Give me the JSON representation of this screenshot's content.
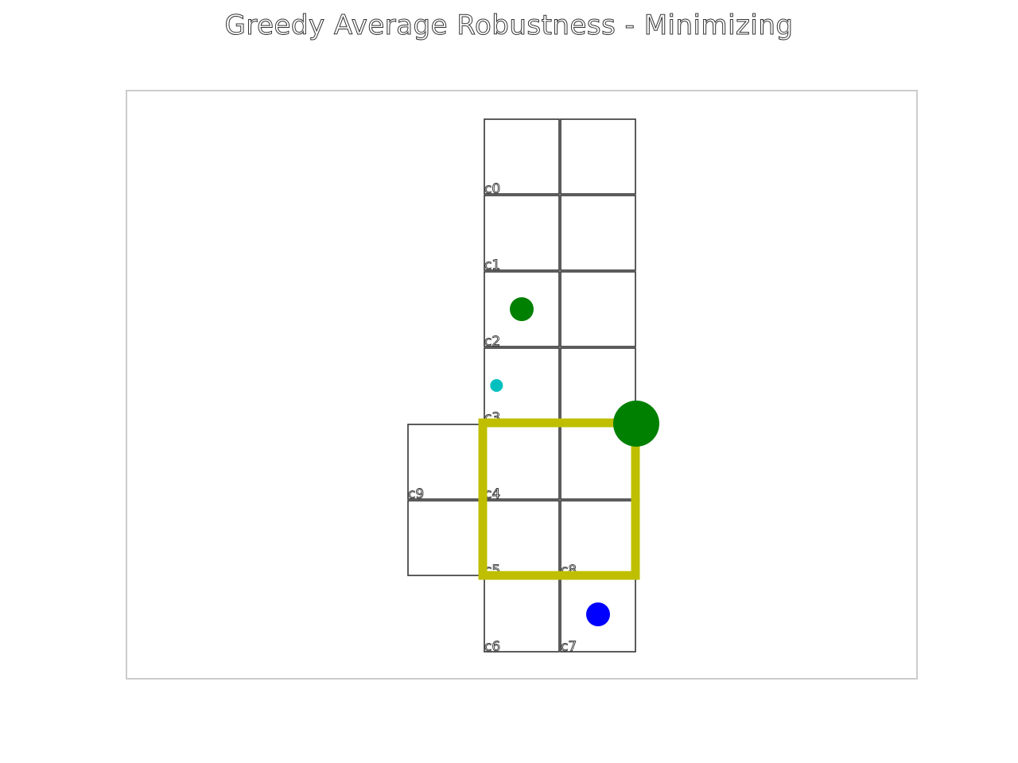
{
  "title": "Greedy Average Robustness - Minimizing",
  "cells": [
    {
      "label": "c0",
      "col": 0,
      "row": 0
    },
    {
      "label": "",
      "col": 1,
      "row": 0
    },
    {
      "label": "c1",
      "col": 0,
      "row": 1
    },
    {
      "label": "",
      "col": 1,
      "row": 1
    },
    {
      "label": "c2",
      "col": 0,
      "row": 2
    },
    {
      "label": "",
      "col": 1,
      "row": 2
    },
    {
      "label": "c3",
      "col": 0,
      "row": 3
    },
    {
      "label": "",
      "col": 1,
      "row": 3
    },
    {
      "label": "c9",
      "col": -1,
      "row": 4
    },
    {
      "label": "c4",
      "col": 0,
      "row": 4
    },
    {
      "label": "",
      "col": 1,
      "row": 4
    },
    {
      "label": "",
      "col": -1,
      "row": 5
    },
    {
      "label": "c5",
      "col": 0,
      "row": 5
    },
    {
      "label": "c8",
      "col": 1,
      "row": 5
    },
    {
      "label": "c6",
      "col": 0,
      "row": 6
    },
    {
      "label": "c7",
      "col": 1,
      "row": 6
    }
  ],
  "markers": [
    {
      "name": "green-marker-small",
      "gx": 0.5,
      "gy": 2.5,
      "size": "medium",
      "color": "#008000"
    },
    {
      "name": "cyan-marker",
      "gx": 0.17,
      "gy": 3.5,
      "size": "small",
      "color": "#00bfbf"
    },
    {
      "name": "green-marker-large",
      "gx": 2.0,
      "gy": 4.0,
      "size": "large",
      "color": "#008000"
    },
    {
      "name": "blue-marker",
      "gx": 1.5,
      "gy": 6.5,
      "size": "medium",
      "color": "#0000ff"
    }
  ],
  "highlight": {
    "gx0": 0,
    "gy0": 4,
    "gx1": 2,
    "gy1": 6,
    "color": "#bfbf00"
  },
  "colors": {
    "cell_stroke": "#333333",
    "frame": "#cccccc"
  }
}
